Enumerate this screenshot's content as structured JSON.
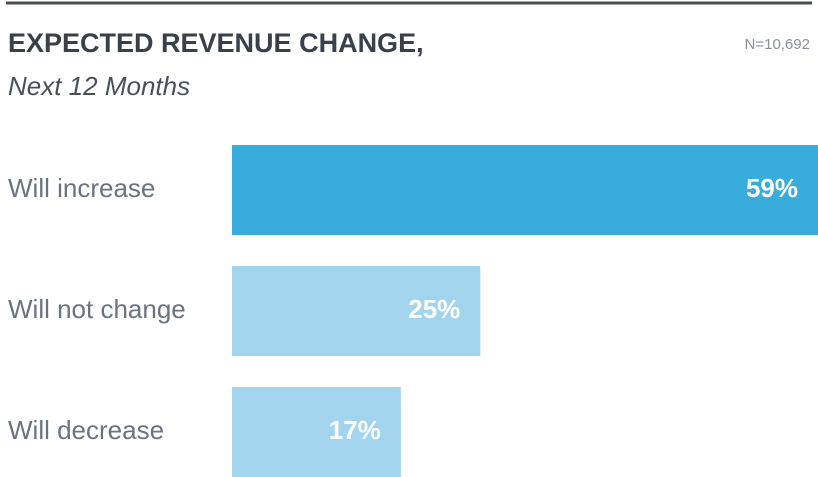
{
  "chart_data": {
    "type": "barh",
    "title": "EXPECTED REVENUE CHANGE,",
    "subtitle": "Next 12 Months",
    "annotation": "N=10,692",
    "categories": [
      "Will increase",
      "Will not change",
      "Will decrease"
    ],
    "values": [
      59,
      25,
      17
    ],
    "value_labels": [
      "59%",
      "25%",
      "17%"
    ],
    "colors": [
      "#38acdc",
      "#a2d5ed",
      "#a2d5ed"
    ]
  }
}
